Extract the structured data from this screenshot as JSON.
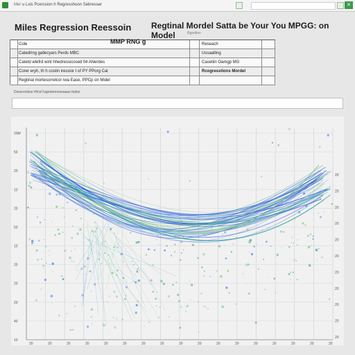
{
  "window": {
    "app_title": "Mel",
    "file_name": "u Lxis Pcerssion h Regresshoon Sebresser"
  },
  "headline": {
    "left": "Miles Regression Reessoin",
    "right": "Regtinal Mordel Satta be Your You MPGG: on Model",
    "sub": "Rgsritinn"
  },
  "sheet": {
    "row1": {
      "a": "Cole",
      "b": "Reseach"
    },
    "row2": {
      "a": "Catedring gallecyars Perds MBC",
      "b": "Ussaalling"
    },
    "row3": {
      "a": "Catetd wlefrd wint hhedressicosed fi4 ANerdes",
      "b": "Casetiin Oamgp MG"
    },
    "row4": {
      "a": "Corer eryh, th h costin iressior t of PY PPorg Cal",
      "b": "Rcogresstions Mordel"
    },
    "row5": {
      "a": "Regtinal mortesorrelcor iwa Ease, PPCp on Midel"
    },
    "big_cell": "MMP RNG g"
  },
  "filter_label": "Dosscroticer tHcel Ivgrotennonsaaas fudos",
  "chart_data": {
    "type": "scatter",
    "title": "",
    "xlabel": "",
    "ylabel": "",
    "y_tick_labels": [
      "20M",
      "50",
      "20",
      "10",
      "20",
      "50",
      "10",
      "20",
      "20",
      "20",
      "40",
      "10"
    ],
    "y_right_tick_labels": [
      "20",
      "20",
      "20",
      "20",
      "20",
      "20",
      "20",
      "20",
      "20",
      "20",
      "20"
    ],
    "x_tick_labels": [
      "20",
      "20",
      "20",
      "20",
      "20",
      "20",
      "20",
      "20",
      "20",
      "20",
      "20",
      "20",
      "20",
      "20",
      "20",
      "20",
      "20"
    ],
    "grid": true,
    "legend": "none"
  },
  "colors": {
    "accent": "#2f8f3a",
    "curve_dark": "#1f4fd6",
    "curve_mid": "#5b8fe8",
    "curve_teal": "#2fa7a0",
    "point_green": "#7fc97f",
    "point_teal": "#4aa6b8"
  }
}
